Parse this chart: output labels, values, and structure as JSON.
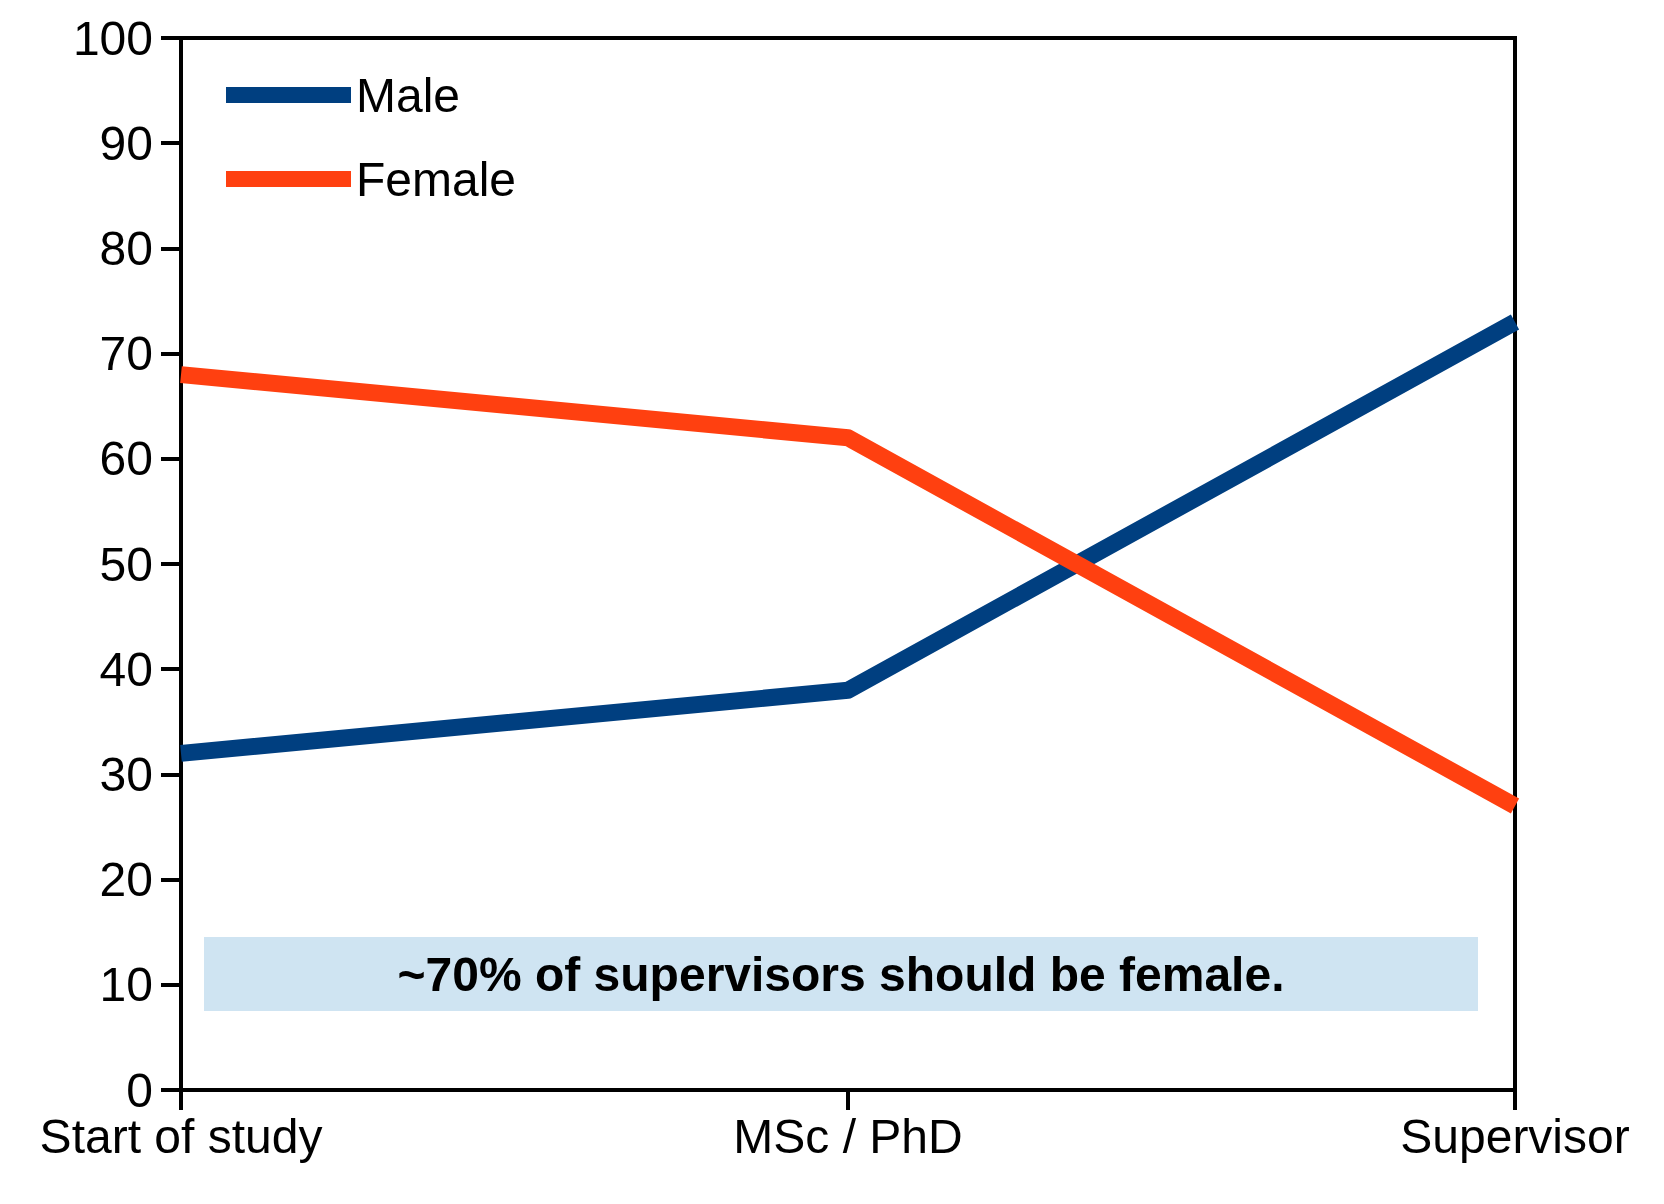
{
  "chart_data": {
    "type": "line",
    "categories": [
      "Start of study",
      "MSc / PhD",
      "Supervisor"
    ],
    "series": [
      {
        "name": "Male",
        "color": "#003f80",
        "values": [
          32,
          38,
          73
        ]
      },
      {
        "name": "Female",
        "color": "#ff4010",
        "values": [
          68,
          62,
          27
        ]
      }
    ],
    "ylim": [
      0,
      100
    ],
    "yticks": [
      0,
      10,
      20,
      30,
      40,
      50,
      60,
      70,
      80,
      90,
      100
    ],
    "legend": "top left",
    "marker": "none",
    "line_style": "solid",
    "annotations": [
      "~70% of supervisors should be female."
    ]
  }
}
